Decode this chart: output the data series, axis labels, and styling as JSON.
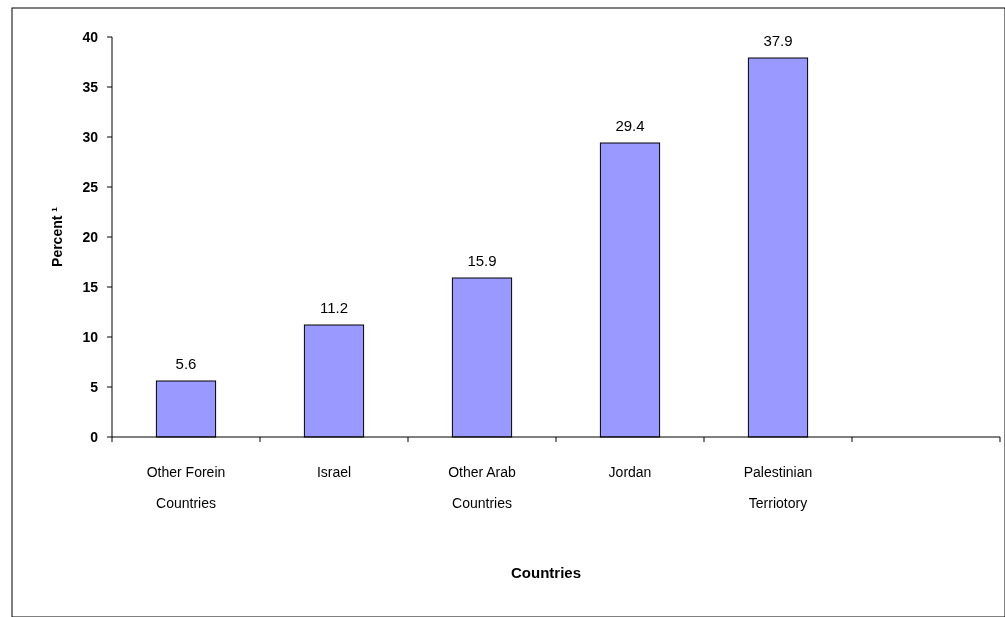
{
  "chart_data": {
    "type": "bar",
    "xlabel": "Countries",
    "ylabel": "Percent ¹",
    "categories": [
      "Other Forein Countries",
      "Israel",
      "Other Arab Countries",
      "Jordan",
      "Palestinian Terriotory",
      null
    ],
    "values": [
      5.6,
      11.2,
      15.9,
      29.4,
      37.9,
      null
    ],
    "color": "#9999ff",
    "ylim": [
      0,
      40
    ],
    "yticks": [
      0,
      5,
      10,
      15,
      20,
      25,
      30,
      35,
      40
    ],
    "data_labels": true,
    "grid": false
  }
}
